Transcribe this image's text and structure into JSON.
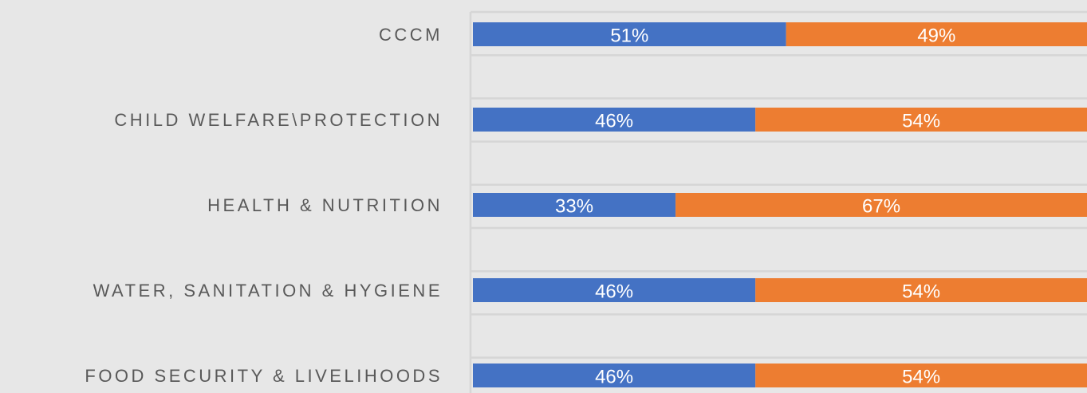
{
  "chart_data": {
    "type": "stacked-bar-horizontal",
    "categories": [
      "CCCM",
      "CHILD WELFARE\\PROTECTION",
      "HEALTH & NUTRITION",
      "WATER, SANITATION & HYGIENE",
      "FOOD SECURITY & LIVELIHOODS"
    ],
    "series": [
      {
        "color": "#4472c4",
        "values": [
          51,
          46,
          33,
          46,
          46
        ],
        "value_labels": [
          "51%",
          "46%",
          "33%",
          "46%",
          "46%"
        ]
      },
      {
        "color": "#ed7d31",
        "values": [
          49,
          54,
          67,
          54,
          54
        ],
        "value_labels": [
          "49%",
          "54%",
          "67%",
          "54%",
          "54%"
        ]
      }
    ],
    "xlim": [
      0,
      100
    ]
  }
}
